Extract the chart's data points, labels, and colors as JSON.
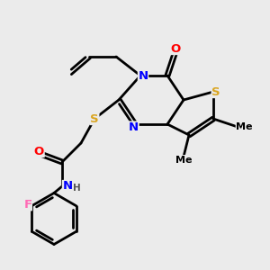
{
  "background_color": "#ebebeb",
  "bond_color": "#000000",
  "atom_colors": {
    "N": "#0000FF",
    "O": "#FF0000",
    "S": "#DAA520",
    "F": "#FF69B4",
    "C": "#000000",
    "H": "#555555"
  },
  "figsize": [
    3.0,
    3.0
  ],
  "dpi": 100,
  "xlim": [
    0,
    10
  ],
  "ylim": [
    0,
    10
  ]
}
